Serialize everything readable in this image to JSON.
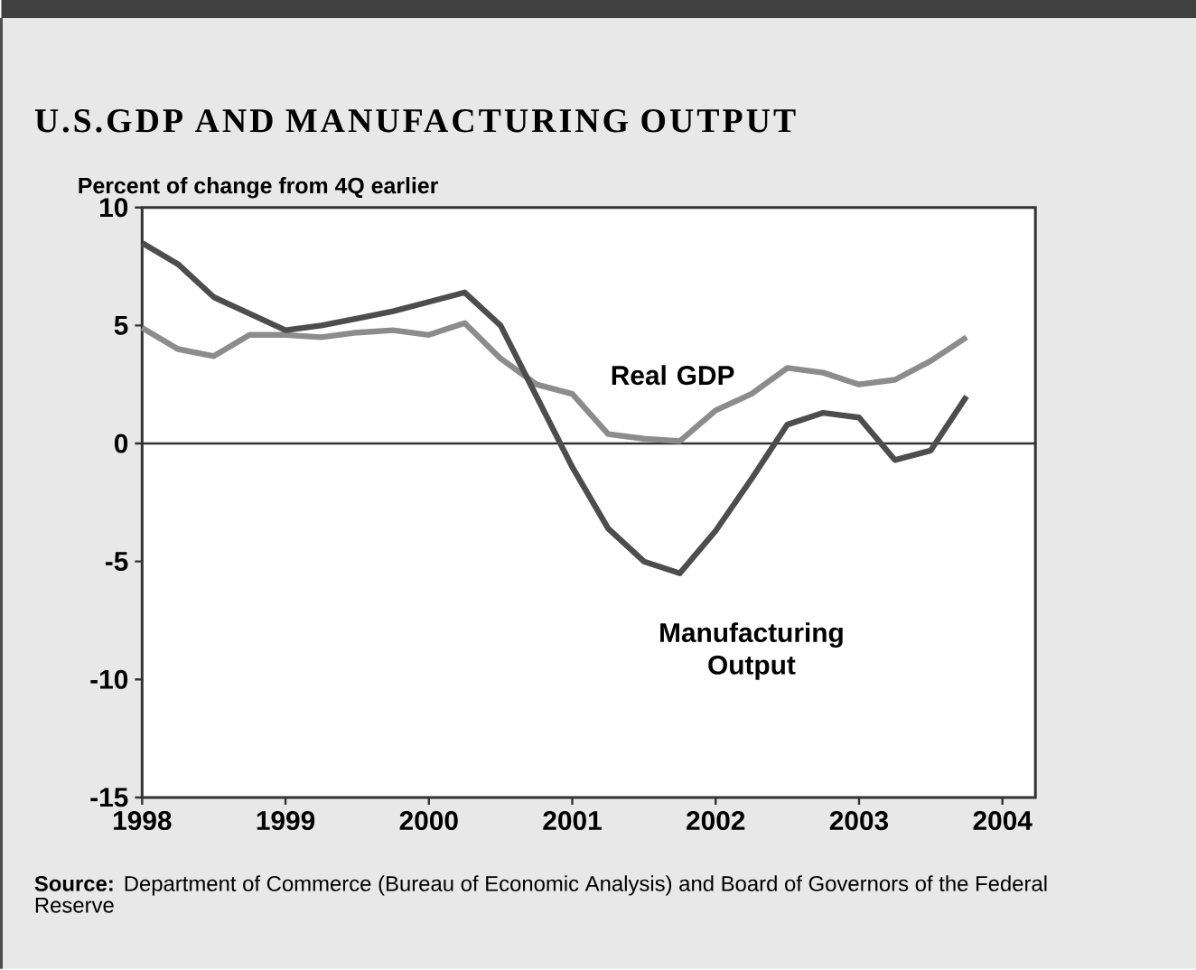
{
  "chart_data": {
    "type": "line",
    "title": "U.S.GDP AND MANUFACTURING OUTPUT",
    "ylabel": "Percent of change from 4Q earlier",
    "x": [
      1998.0,
      1998.25,
      1998.5,
      1998.75,
      1999.0,
      1999.25,
      1999.5,
      1999.75,
      2000.0,
      2000.25,
      2000.5,
      2000.75,
      2001.0,
      2001.25,
      2001.5,
      2001.75,
      2002.0,
      2002.25,
      2002.5,
      2002.75,
      2003.0,
      2003.25,
      2003.5,
      2003.75
    ],
    "series": [
      {
        "name": "Real GDP",
        "color": "#8c8c8c",
        "values": [
          4.9,
          4.0,
          3.7,
          4.6,
          4.6,
          4.5,
          4.7,
          4.8,
          4.6,
          5.1,
          3.6,
          2.5,
          2.1,
          0.4,
          0.2,
          0.1,
          1.4,
          2.1,
          3.2,
          3.0,
          2.5,
          2.7,
          3.5,
          4.5
        ]
      },
      {
        "name": "Manufacturing Output",
        "color": "#4d4d4d",
        "values": [
          8.5,
          7.6,
          6.2,
          5.5,
          4.8,
          5.0,
          5.3,
          5.6,
          6.0,
          6.4,
          5.0,
          2.0,
          -1.0,
          -3.6,
          -5.0,
          -5.5,
          -3.7,
          -1.5,
          0.8,
          1.3,
          1.1,
          -0.7,
          -0.3,
          2.0
        ]
      }
    ],
    "xlim": [
      1998,
      2004.23
    ],
    "ylim": [
      -15,
      10
    ],
    "xticks": [
      1998,
      1999,
      2000,
      2001,
      2002,
      2003,
      2004
    ],
    "yticks": [
      -15,
      -10,
      -5,
      0,
      5,
      10
    ],
    "ref_lines": [
      {
        "axis": "y",
        "value": 0,
        "color": "#333333"
      }
    ],
    "grid": false,
    "marker": "none",
    "line_style": "solid",
    "annotations": [
      "**Source:** Department of Commerce (Bureau of Economic Analysis) and Board of Governors of the Federal Reserve"
    ]
  }
}
